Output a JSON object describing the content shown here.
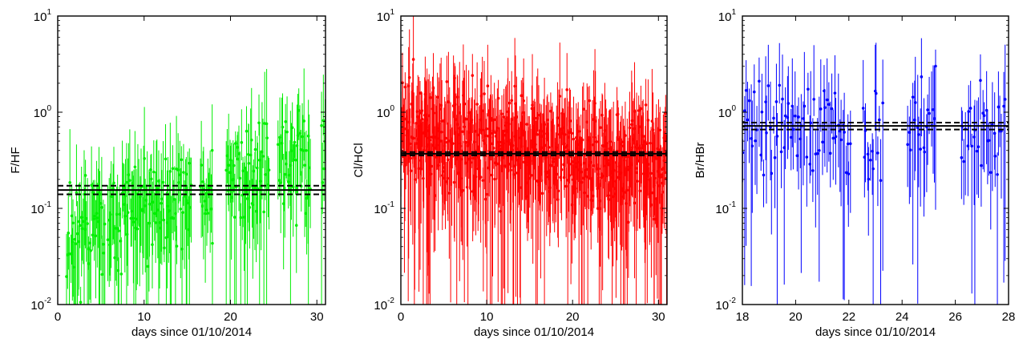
{
  "chart_data": [
    {
      "type": "scatter",
      "xlabel": "days since 01/10/2014",
      "ylabel": "F/HF",
      "xlim": [
        0,
        31
      ],
      "ylim": [
        0.01,
        10
      ],
      "yscale": "log",
      "xticks": [
        0,
        10,
        20,
        30
      ],
      "xtick_labels": [
        "0",
        "10",
        "20",
        "30"
      ],
      "ytick_labels": [
        {
          "base": "10",
          "exp": "-2"
        },
        {
          "base": "10",
          "exp": "-1"
        },
        {
          "base": "10",
          "exp": "0"
        },
        {
          "base": "10",
          "exp": "1"
        }
      ],
      "grid": false,
      "color": "#00ee00",
      "mean_line": 0.155,
      "band": [
        0.14,
        0.172
      ],
      "segments": [
        [
          1,
          5.5
        ],
        [
          5.8,
          15.5
        ],
        [
          16.5,
          18
        ],
        [
          19.5,
          24.5
        ],
        [
          25.5,
          29.3
        ],
        [
          30.5,
          31
        ]
      ],
      "n_points": 260,
      "center_logs": [
        -1.3,
        -0.4
      ],
      "seed": 11
    },
    {
      "type": "scatter",
      "xlabel": "days since 01/10/2014",
      "ylabel": "Cl/HCl",
      "xlim": [
        0,
        31
      ],
      "ylim": [
        0.01,
        10
      ],
      "yscale": "log",
      "xticks": [
        0,
        10,
        20,
        30
      ],
      "xtick_labels": [
        "0",
        "10",
        "20",
        "30"
      ],
      "ytick_labels": [
        {
          "base": "10",
          "exp": "-2"
        },
        {
          "base": "10",
          "exp": "-1"
        },
        {
          "base": "10",
          "exp": "0"
        },
        {
          "base": "10",
          "exp": "1"
        }
      ],
      "grid": false,
      "color": "#ff0000",
      "mean_line": 0.37,
      "band": [
        0.355,
        0.385
      ],
      "segments": [
        [
          0,
          31
        ]
      ],
      "n_points": 560,
      "center_logs": [
        -0.2,
        -0.55
      ],
      "seed": 23
    },
    {
      "type": "scatter",
      "xlabel": "days since 01/10/2014",
      "ylabel": "Br/HBr",
      "xlim": [
        18,
        28
      ],
      "ylim": [
        0.01,
        10
      ],
      "yscale": "log",
      "xticks": [
        18,
        20,
        22,
        24,
        26,
        28
      ],
      "xtick_labels": [
        "18",
        "20",
        "22",
        "24",
        "26",
        "28"
      ],
      "ytick_labels": [
        {
          "base": "10",
          "exp": "-2"
        },
        {
          "base": "10",
          "exp": "-1"
        },
        {
          "base": "10",
          "exp": "0"
        },
        {
          "base": "10",
          "exp": "1"
        }
      ],
      "grid": false,
      "color": "#0000ff",
      "mean_line": 0.72,
      "band": [
        0.66,
        0.78
      ],
      "segments": [
        [
          18,
          22.1
        ],
        [
          22.5,
          23.3
        ],
        [
          24.2,
          25.3
        ],
        [
          26.2,
          27.9
        ]
      ],
      "n_points": 130,
      "center_logs": [
        -0.05,
        -0.3
      ],
      "seed": 37
    }
  ]
}
